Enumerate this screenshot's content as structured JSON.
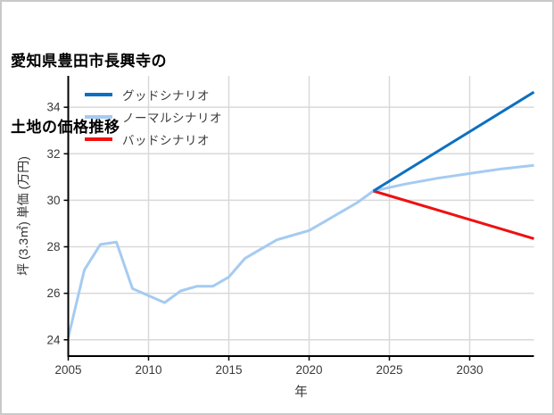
{
  "title_lines": [
    "愛知県豊田市長興寺の",
    "土地の価格推移"
  ],
  "legend": [
    {
      "label": "グッドシナリオ",
      "color": "#0d6fc2"
    },
    {
      "label": "ノーマルシナリオ",
      "color": "#a5cbf1"
    },
    {
      "label": "バッドシナリオ",
      "color": "#ee1111"
    }
  ],
  "chart_data": {
    "type": "line",
    "title": "愛知県豊田市長興寺の土地の価格推移",
    "xlabel": "年",
    "ylabel": "坪 (3.3㎡) 単価 (万円)",
    "xlim": [
      2005,
      2034
    ],
    "ylim": [
      23.3,
      35.35
    ],
    "x_ticks": [
      2005,
      2010,
      2015,
      2020,
      2025,
      2030
    ],
    "y_ticks": [
      24,
      26,
      28,
      30,
      32,
      34
    ],
    "grid": true,
    "grid_color": "#d9d9d9",
    "axis_color": "#000000",
    "tick_label_color": "#3a3a3a",
    "legend_position": "upper-left",
    "series": [
      {
        "name": "ノーマルシナリオ",
        "color": "#a5cbf1",
        "width": 3,
        "x": [
          2005,
          2006,
          2007,
          2008,
          2009,
          2010,
          2011,
          2012,
          2013,
          2014,
          2015,
          2016,
          2017,
          2018,
          2019,
          2020,
          2021,
          2022,
          2023,
          2024,
          2026,
          2028,
          2030,
          2032,
          2034
        ],
        "y": [
          24.1,
          27.0,
          28.1,
          28.2,
          26.2,
          25.9,
          25.6,
          26.1,
          26.3,
          26.3,
          26.7,
          27.5,
          27.9,
          28.3,
          28.5,
          28.7,
          29.1,
          29.5,
          29.9,
          30.4,
          30.7,
          30.95,
          31.15,
          31.35,
          31.5
        ]
      },
      {
        "name": "バッドシナリオ",
        "color": "#ee1111",
        "width": 3,
        "x": [
          2024,
          2034
        ],
        "y": [
          30.4,
          28.35
        ]
      },
      {
        "name": "グッドシナリオ",
        "color": "#0d6fc2",
        "width": 3,
        "x": [
          2024,
          2034
        ],
        "y": [
          30.4,
          34.65
        ]
      }
    ]
  }
}
